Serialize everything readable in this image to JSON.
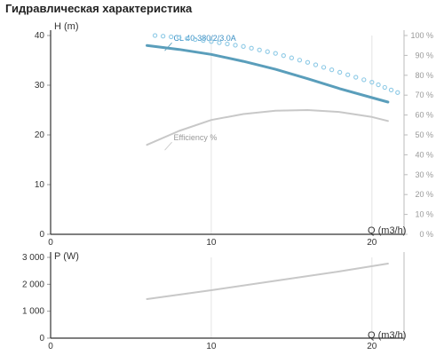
{
  "title": "Гидравлическая характеристика",
  "chart_data": [
    {
      "type": "line",
      "panel": "head-efficiency",
      "xlabel": "Q (m3/h)",
      "ylabel": "H (m)",
      "y2label": "",
      "xlim": [
        0,
        22
      ],
      "ylim": [
        0,
        40
      ],
      "y2lim": [
        0,
        100
      ],
      "xticks": [
        "0",
        "10",
        "20"
      ],
      "yticks": [
        "0",
        "10",
        "20",
        "30",
        "40"
      ],
      "y2ticks": [
        "0 %",
        "10 %",
        "20 %",
        "30 %",
        "40 %",
        "50 %",
        "60 %",
        "70 %",
        "80 %",
        "90 %",
        "100 %"
      ],
      "grid": true,
      "series": [
        {
          "name": "CL 40-380/2/3.0A",
          "color": "#5a9ebb",
          "axis": "left",
          "style": "solid",
          "x": [
            6,
            8,
            10,
            12,
            14,
            16,
            18,
            20,
            21
          ],
          "y": [
            38,
            37.2,
            36.2,
            34.8,
            33.2,
            31.3,
            29.3,
            27.5,
            26.6
          ]
        },
        {
          "name": "",
          "color": "#8ecae6",
          "axis": "right",
          "style": "dotted",
          "x": [
            6.5,
            8,
            10,
            12,
            14,
            16,
            18,
            20,
            22
          ],
          "y": [
            100,
            99,
            97,
            94.5,
            91,
            86.5,
            81.5,
            76.5,
            70
          ]
        },
        {
          "name": "Efficiency %",
          "color": "#c8c8c8",
          "axis": "right",
          "style": "solid",
          "x": [
            6,
            8,
            10,
            12,
            14,
            16,
            18,
            20,
            21
          ],
          "y": [
            45,
            52,
            57.5,
            60.5,
            62.2,
            62.5,
            61.5,
            59,
            57
          ]
        }
      ]
    },
    {
      "type": "line",
      "panel": "power",
      "xlabel": "Q (m3/h)",
      "ylabel": "P (W)",
      "xlim": [
        0,
        22
      ],
      "ylim": [
        0,
        3000
      ],
      "xticks": [
        "0",
        "10",
        "20"
      ],
      "yticks": [
        "0",
        "1 000",
        "2 000",
        "3 000"
      ],
      "grid": true,
      "series": [
        {
          "name": "",
          "color": "#c8c8c8",
          "x": [
            6,
            10,
            14,
            18,
            21
          ],
          "y": [
            1450,
            1780,
            2130,
            2480,
            2770
          ]
        }
      ]
    }
  ]
}
